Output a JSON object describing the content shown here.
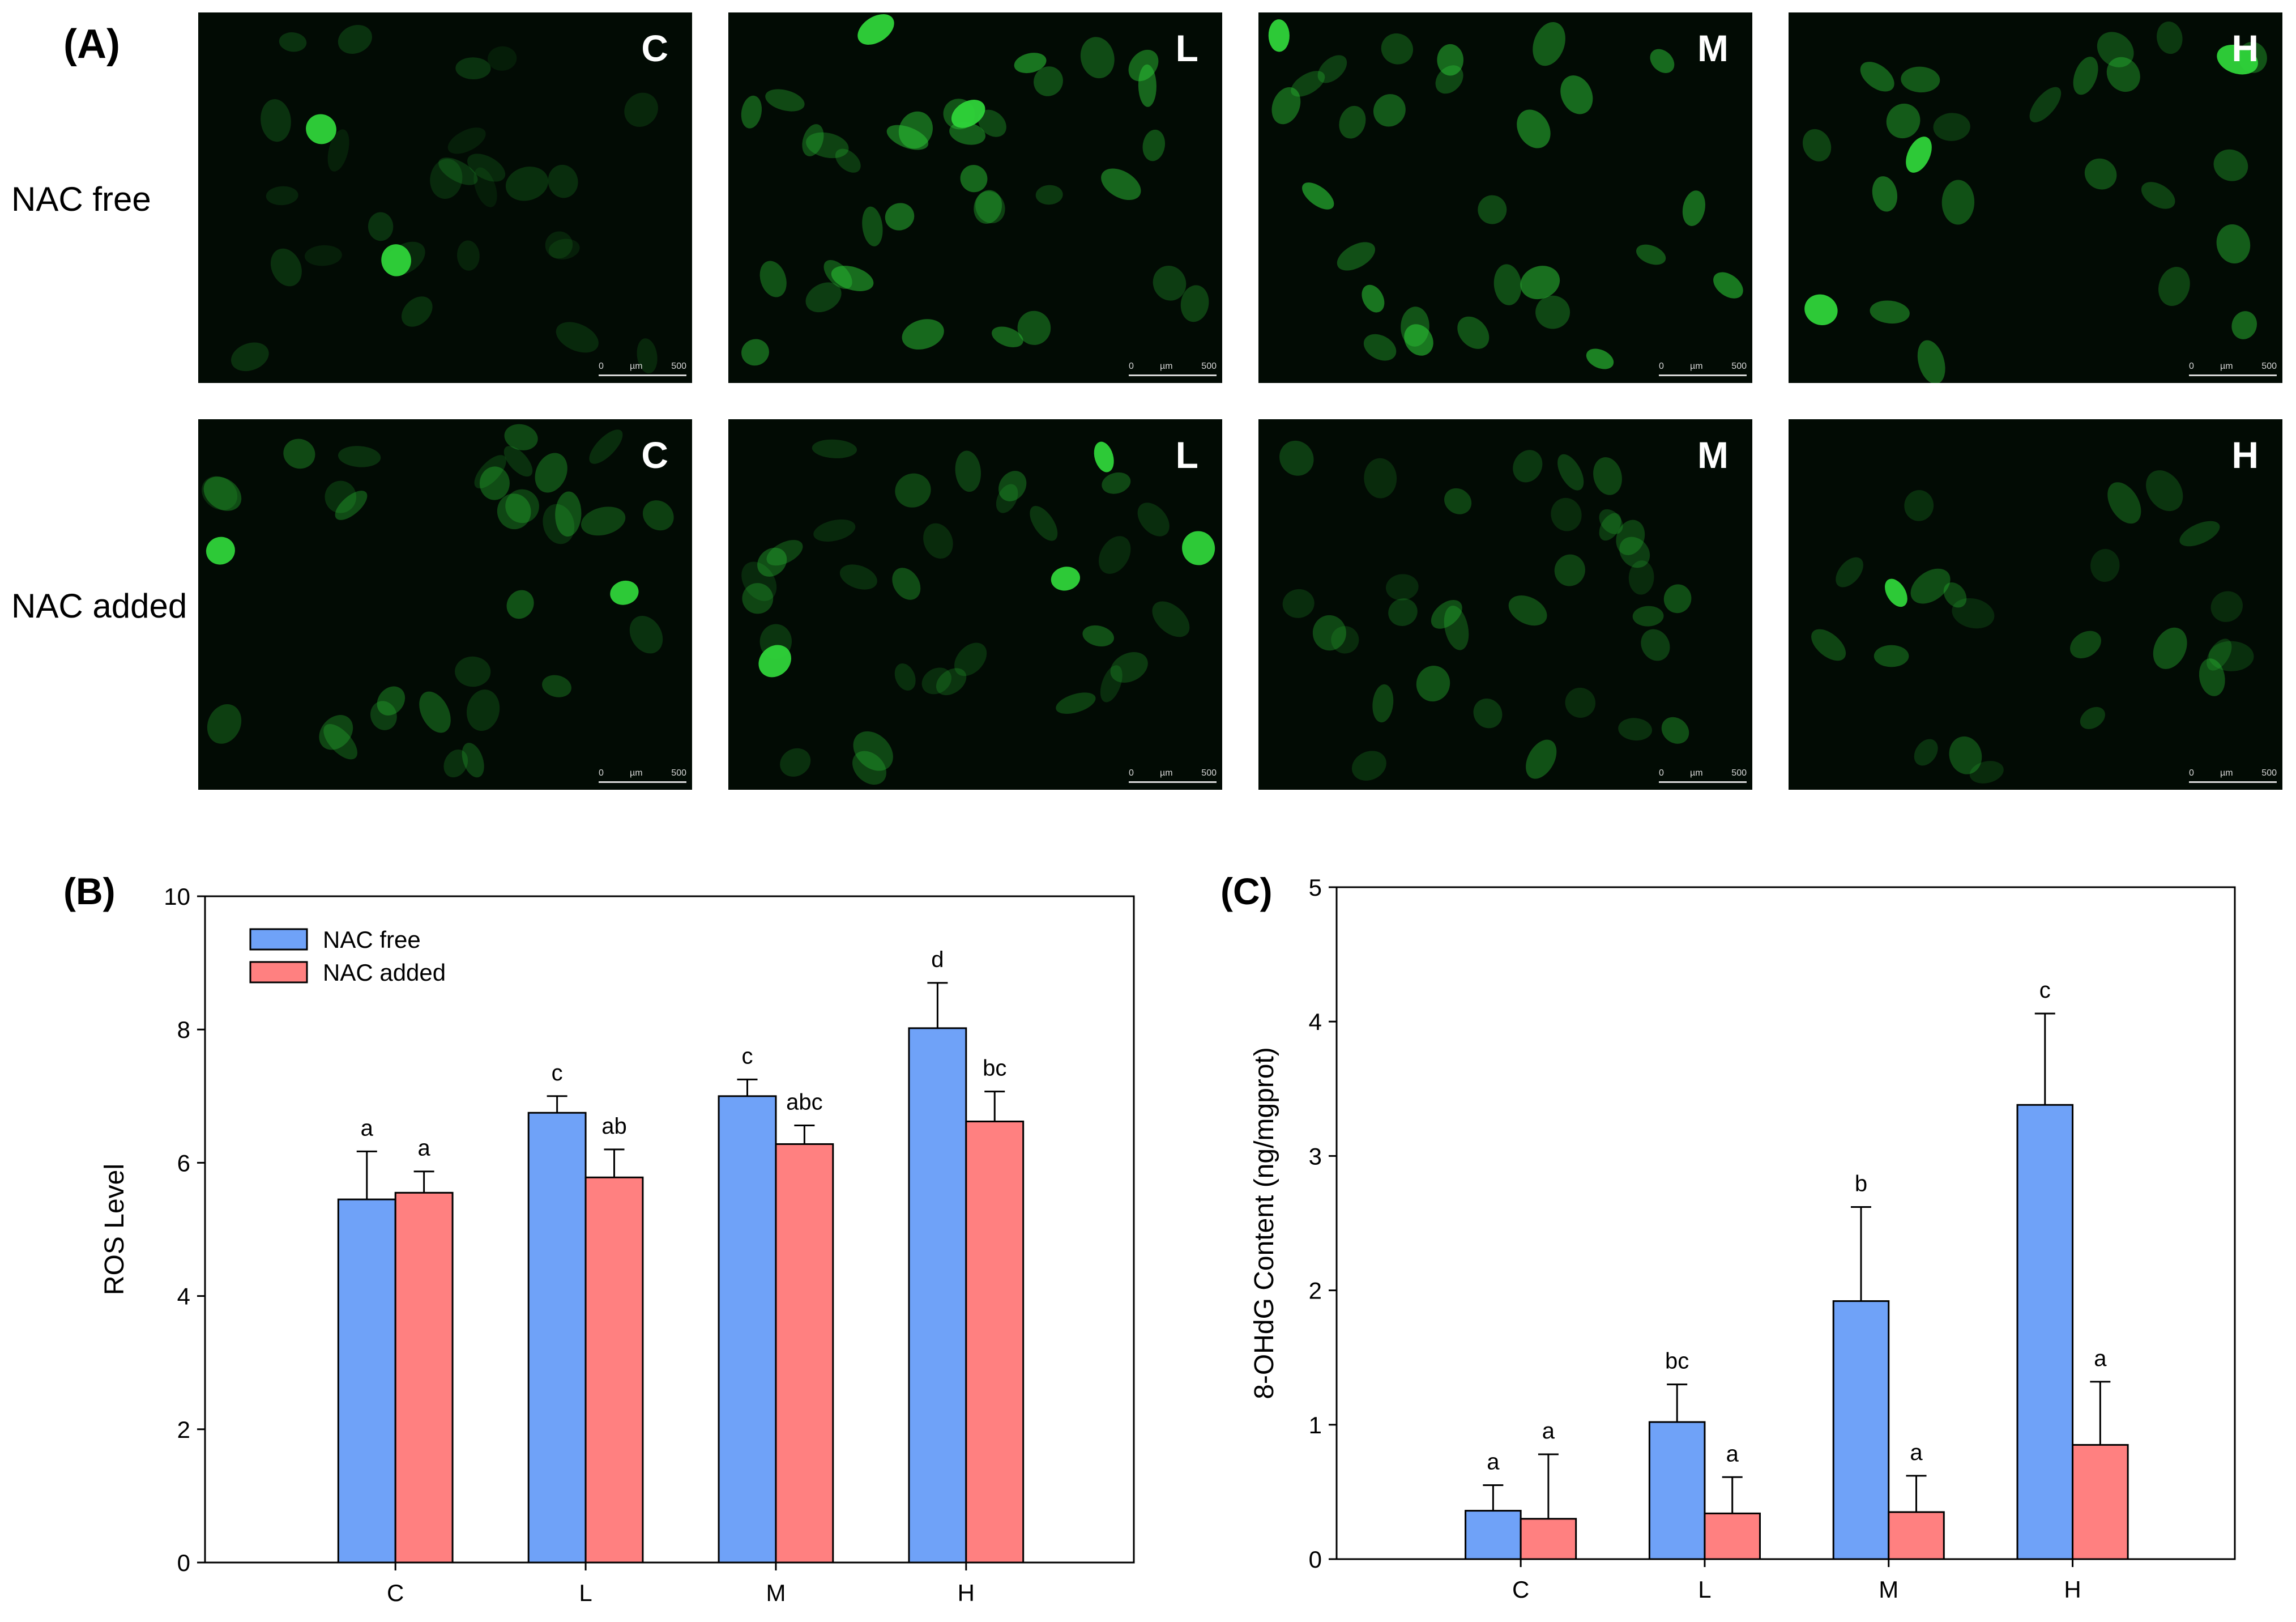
{
  "panel_a": {
    "letter": "(A)",
    "row_labels": [
      "NAC free",
      "NAC added"
    ],
    "column_tags": [
      "C",
      "L",
      "M",
      "H"
    ],
    "scale_bar": {
      "start": "0",
      "unit": "µm",
      "end": "500"
    },
    "fluorescence_color": "#2fd43a",
    "background_color": "#020b04"
  },
  "chart_data": [
    {
      "panel": "(B)",
      "type": "bar",
      "categories": [
        "C",
        "L",
        "M",
        "H"
      ],
      "series": [
        {
          "name": "NAC free",
          "color": "#6fa2f8",
          "values": [
            5.45,
            6.75,
            7.0,
            8.02
          ],
          "errors": [
            0.72,
            0.25,
            0.25,
            0.68
          ],
          "letters": [
            "a",
            "c",
            "c",
            "d"
          ]
        },
        {
          "name": "NAC added",
          "color": "#ff8080",
          "values": [
            5.55,
            5.78,
            6.28,
            6.62
          ],
          "errors": [
            0.32,
            0.42,
            0.28,
            0.45
          ],
          "letters": [
            "a",
            "ab",
            "abc",
            "bc"
          ]
        }
      ],
      "xlabel": "",
      "ylabel": "ROS Level",
      "ylim": [
        0,
        10
      ],
      "yticks": [
        "0",
        "2",
        "4",
        "6",
        "8",
        "10"
      ],
      "legend": "top-left",
      "grid": false
    },
    {
      "panel": "(C)",
      "type": "bar",
      "categories": [
        "C",
        "L",
        "M",
        "H"
      ],
      "series": [
        {
          "color": "#6fa2f8",
          "values": [
            0.36,
            1.02,
            1.92,
            3.38
          ],
          "errors": [
            0.19,
            0.28,
            0.7,
            0.68
          ],
          "letters": [
            "a",
            "bc",
            "b",
            "c"
          ]
        },
        {
          "color": "#ff8080",
          "values": [
            0.3,
            0.34,
            0.35,
            0.85
          ],
          "errors": [
            0.48,
            0.27,
            0.27,
            0.47
          ],
          "letters": [
            "a",
            "a",
            "a",
            "a"
          ]
        }
      ],
      "xlabel": "",
      "ylabel": "8-OHdG Content (ng/mgprot)",
      "ylim": [
        0,
        5
      ],
      "yticks": [
        "0",
        "1",
        "2",
        "3",
        "4",
        "5"
      ],
      "legend": "none",
      "grid": false
    }
  ]
}
